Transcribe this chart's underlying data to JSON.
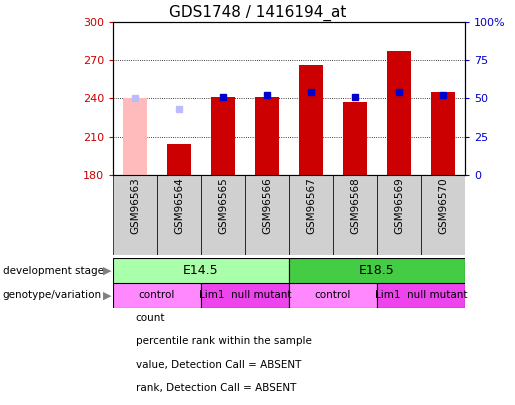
{
  "title": "GDS1748 / 1416194_at",
  "samples": [
    "GSM96563",
    "GSM96564",
    "GSM96565",
    "GSM96566",
    "GSM96567",
    "GSM96568",
    "GSM96569",
    "GSM96570"
  ],
  "count_values": [
    240.5,
    204.0,
    241.0,
    241.5,
    266.5,
    237.5,
    277.0,
    245.0
  ],
  "rank_values": [
    50.0,
    43.0,
    51.0,
    52.0,
    54.0,
    51.0,
    54.0,
    52.0
  ],
  "absent_mask": [
    true,
    false,
    false,
    false,
    false,
    false,
    false,
    false
  ],
  "rank_absent_mask": [
    true,
    true,
    false,
    false,
    false,
    false,
    false,
    false
  ],
  "ylim_left": [
    180,
    300
  ],
  "ylim_right": [
    0,
    100
  ],
  "yticks_left": [
    180,
    210,
    240,
    270,
    300
  ],
  "ytick_labels_right": [
    "0",
    "25",
    "50",
    "75",
    "100%"
  ],
  "yticks_right": [
    0,
    25,
    50,
    75,
    100
  ],
  "bar_width": 0.55,
  "bar_color_normal": "#cc0000",
  "bar_color_absent": "#ffbbbb",
  "rank_color_normal": "#0000cc",
  "rank_color_absent": "#bbbbff",
  "dev_stage_groups": [
    {
      "label": "E14.5",
      "start": 0,
      "end": 3,
      "color": "#aaffaa"
    },
    {
      "label": "E18.5",
      "start": 4,
      "end": 7,
      "color": "#44cc44"
    }
  ],
  "genotype_groups": [
    {
      "label": "control",
      "start": 0,
      "end": 1,
      "color": "#ff88ff"
    },
    {
      "label": "Lim1  null mutant",
      "start": 2,
      "end": 3,
      "color": "#ee44ee"
    },
    {
      "label": "control",
      "start": 4,
      "end": 5,
      "color": "#ff88ff"
    },
    {
      "label": "Lim1  null mutant",
      "start": 6,
      "end": 7,
      "color": "#ee44ee"
    }
  ],
  "legend_items": [
    {
      "label": "count",
      "color": "#cc0000"
    },
    {
      "label": "percentile rank within the sample",
      "color": "#0000cc"
    },
    {
      "label": "value, Detection Call = ABSENT",
      "color": "#ffbbbb"
    },
    {
      "label": "rank, Detection Call = ABSENT",
      "color": "#bbbbff"
    }
  ],
  "axis_color_left": "#cc0000",
  "axis_color_right": "#0000cc",
  "xtick_bg_color": "#d0d0d0",
  "arrow_color": "#808080"
}
